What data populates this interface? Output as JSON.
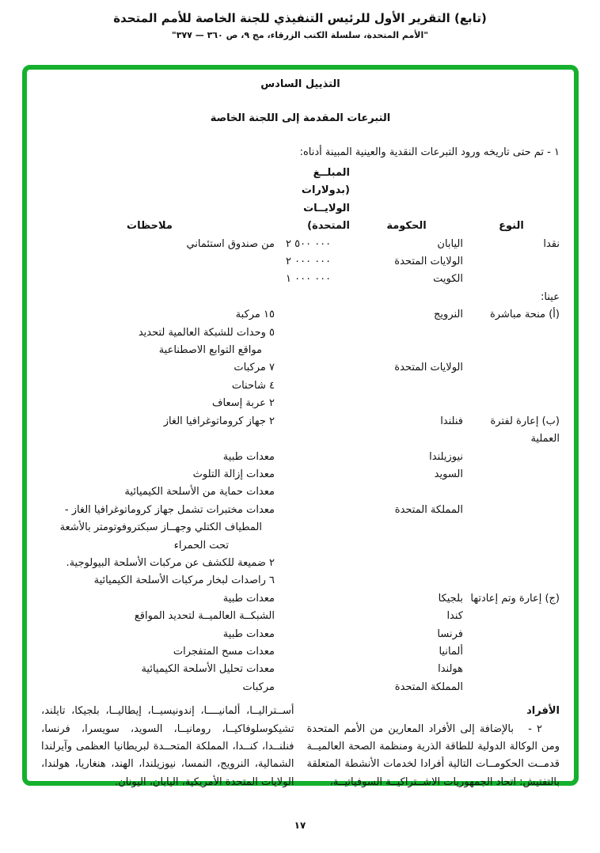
{
  "page": {
    "title_line1": "(تابع) التقرير الأول للرئيس التنفيذي للجنة الخاصة للأمم المتحدة",
    "title_line2": "\"الأمم المتحدة، سلسلة الكتب الزرقاء، مج ٩، ص ٣٦٠ — ٣٧٧\"",
    "page_number": "١٧",
    "frame_border_color": "#15b02e"
  },
  "appendix": {
    "heading": "التذييل السادس",
    "subtitle": "التبرعات المقدمة إلى اللجنة الخاصة",
    "intro": "١ -  تم حتى تاريخه ورود التبرعات النقدية والعينية المبينة أدناه:"
  },
  "table": {
    "headers": {
      "type": "النوع",
      "government": "الحكومة",
      "amount_lines": [
        "المبلــغ",
        "(بدولارات",
        "الولايــات",
        "المتحدة)"
      ],
      "notes": "ملاحظات"
    },
    "rows": [
      {
        "type": "نقدا",
        "government": "اليابان",
        "amount": "٢ ٥٠٠ ٠٠٠",
        "note": "من صندوق استئماني"
      },
      {
        "government": "الولايات المتحدة",
        "amount": "٢ ٠٠٠ ٠٠٠"
      },
      {
        "government": "الكويت",
        "amount": "١ ٠٠٠ ٠٠٠"
      },
      {
        "type": "عينا:"
      },
      {
        "type": "(أ) منحة مباشرة",
        "government": "النرويج",
        "note": "١٥ مركبة"
      },
      {
        "note": "٥  وحدات للشبكة العالمية لتحديد"
      },
      {
        "note": "مواقع التوابع الاصطناعية",
        "indent": 1
      },
      {
        "government": "الولايات المتحدة",
        "note": "٧ مركبات"
      },
      {
        "note": "٤ شاحنات"
      },
      {
        "note": "٢ عربة إسعاف"
      },
      {
        "type": "(ب) إعارة لفترة العملية",
        "government": "فنلندا",
        "note": "٢ جهاز كروماتوغرافيا الغاز"
      },
      {
        "government": "نيوزيلندا",
        "note": "معدات طبية"
      },
      {
        "government": "السويد",
        "note": "معدات إزالة التلوث"
      },
      {
        "note": "معدات حماية من الأسلحة الكيميائية"
      },
      {
        "government": "المملكة المتحدة",
        "note": "معدات مختبرات تشمل جهاز كروماتوغرافيا الغاز -"
      },
      {
        "note": "المطياف الكتلي وجهــاز سبكتروفوتومتر بالأشعة",
        "indent": 1
      },
      {
        "note": "تحت الحمراء",
        "indent": 2
      },
      {
        "note": "٢ ضميعة للكشف عن مركبات الأسلحة البيولوجية."
      },
      {
        "note": "٦ راصدات لبخار مركبات الأسلحة الكيميائية"
      },
      {
        "type": "(ج) إعارة وتم إعادتها",
        "government": "بلجيكا",
        "note": "معدات طبية"
      },
      {
        "government": "كندا",
        "note": "الشبكــة العالميــة لتحديد المواقع"
      },
      {
        "government": "فرنسا",
        "note": "معدات طبية"
      },
      {
        "government": "ألمانيا",
        "note": "معدات مسح المتفجرات"
      },
      {
        "government": "هولندا",
        "note": "معدات تحليل الأسلحة الكيميائية"
      },
      {
        "government": "المملكة المتحدة",
        "note": "مركبات"
      }
    ]
  },
  "personnel": {
    "heading": "الأفراد",
    "paragraph_start": "٢ -   بالإضافة إلى الأفراد المعارين من الأمم المتحدة ومن الوكالة الدولية للطاقة الذرية ومنظمة الصحة العالميــة قدمــت الحكومــات التالية أفرادا لخدمات الأنشطة المتعلقة بالتفتيش: اتحاد الجمهوريات الاشــتراكيــة السوفياتيــة،",
    "paragraph_continued": "أســتراليــا، ألمانيــــا، إندونيسيــا، إيطاليــا، بلجيكا، تايلند، تشيكوسلوفاكيــا، رومانيــا، السويد، سويسرا، فرنسا، فنلنــدا، كنــدا، المملكة المتحــدة لبريطانيا العظمى وآيرلندا الشمالية، النرويج، النمسا، نيوزيلندا، الهند، هنغاريا، هولندا، الولايات المتحدة الأمريكية، اليابان، اليونان."
  }
}
